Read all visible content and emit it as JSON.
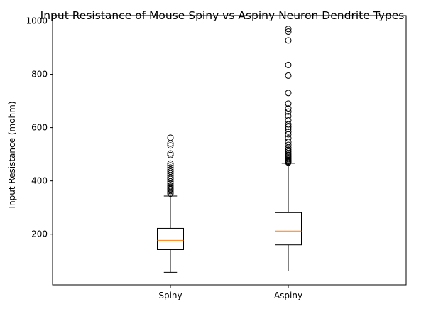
{
  "chart_data": {
    "type": "box",
    "title": "Input Resistance of Mouse Spiny vs Aspiny Neuron Dendrite Types",
    "xlabel": "",
    "ylabel": "Input Resistance (mohm)",
    "ylim": [
      10,
      1020
    ],
    "yticks": [
      200,
      400,
      600,
      800,
      1000
    ],
    "grid": false,
    "categories": [
      "Spiny",
      "Aspiny"
    ],
    "boxes": [
      {
        "name": "Spiny",
        "whisker_low": 57,
        "q1": 142,
        "median": 177,
        "q3": 222,
        "whisker_high": 343,
        "outliers": [
          352,
          357,
          362,
          368,
          372,
          378,
          383,
          390,
          398,
          407,
          413,
          420,
          428,
          435,
          442,
          450,
          458,
          465,
          497,
          503,
          533,
          540,
          562
        ]
      },
      {
        "name": "Aspiny",
        "whisker_low": 62,
        "q1": 160,
        "median": 212,
        "q3": 281,
        "whisker_high": 466,
        "outliers": [
          469,
          472,
          475,
          478,
          482,
          486,
          490,
          494,
          498,
          503,
          510,
          517,
          525,
          535,
          546,
          560,
          575,
          585,
          595,
          603,
          612,
          627,
          643,
          660,
          672,
          690,
          730,
          795,
          835,
          927,
          960,
          970
        ]
      }
    ],
    "colors": {
      "box": "#000000",
      "median": "#ff7f0e",
      "flier": "#000000"
    }
  }
}
